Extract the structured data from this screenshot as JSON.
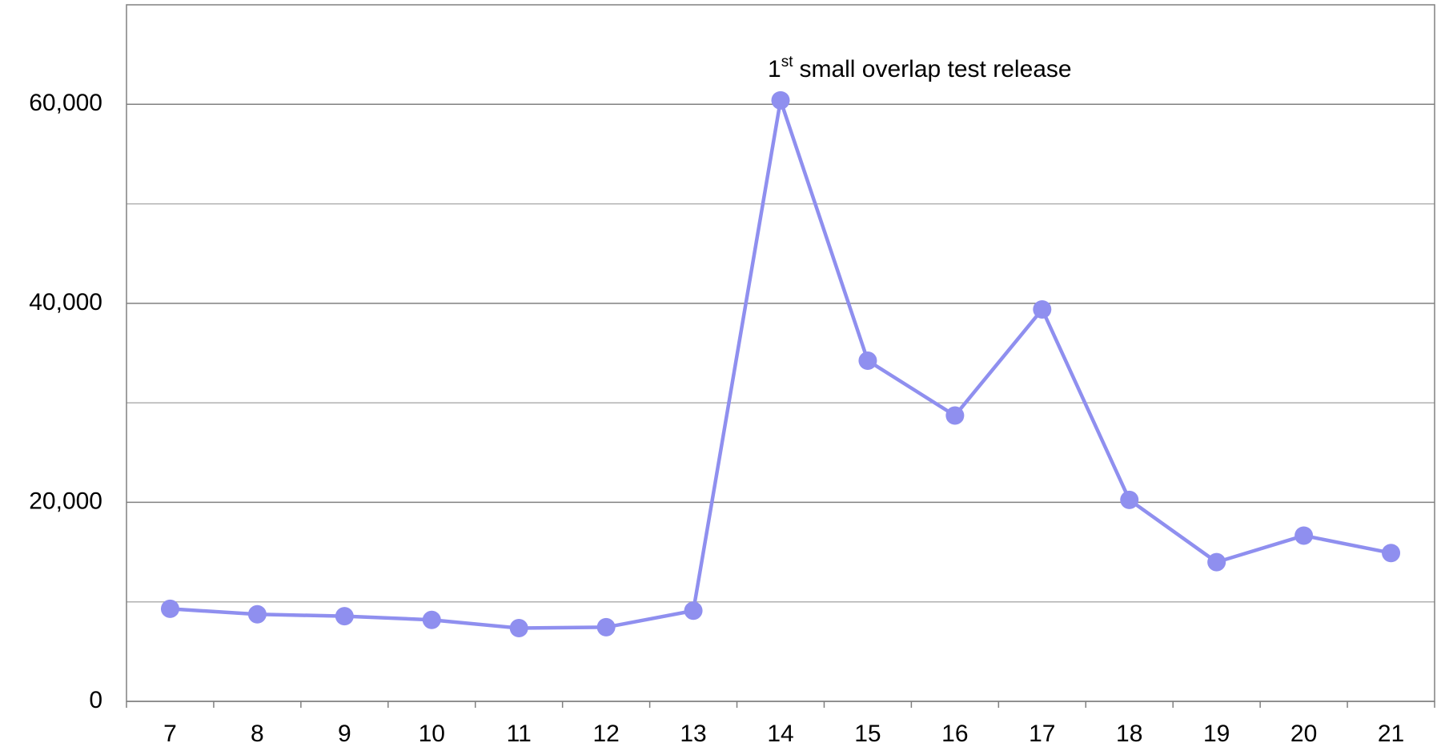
{
  "chart_data": {
    "type": "line",
    "annotation": {
      "text": "1",
      "superscript": "st",
      "rest": "small overlap test release"
    },
    "categories": [
      "7",
      "8",
      "9",
      "10",
      "11",
      "12",
      "13",
      "14",
      "15",
      "16",
      "17",
      "18",
      "19",
      "20",
      "21"
    ],
    "series": [
      {
        "color": "#8f8fef",
        "values": [
          9300,
          8750,
          8560,
          8190,
          7360,
          7450,
          9110,
          60400,
          34240,
          28720,
          39390,
          20250,
          13990,
          16660,
          14910
        ]
      }
    ],
    "ylim": [
      0,
      70000
    ],
    "yticks": [
      0,
      {
        "value": 20000,
        "label": "20,000"
      },
      {
        "value": 40000,
        "label": "40,000"
      },
      {
        "value": 60000,
        "label": "60,000"
      }
    ],
    "minor_yticks": [
      10000,
      30000,
      50000
    ],
    "grid": true
  }
}
